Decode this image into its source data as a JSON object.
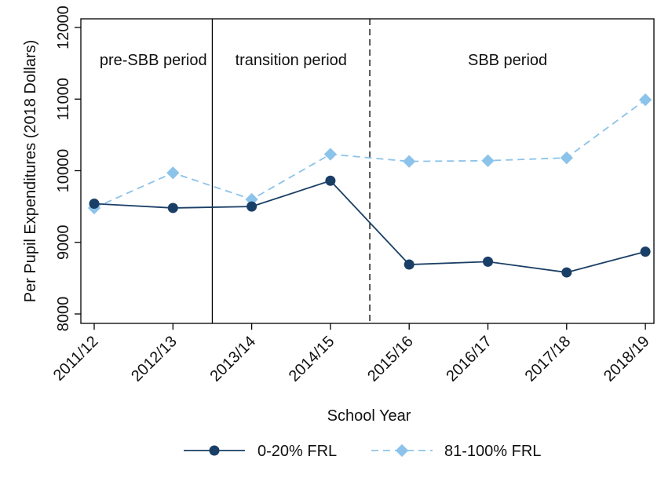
{
  "chart_data": {
    "type": "line",
    "title": "",
    "xlabel": "School Year",
    "ylabel": "Per Pupil Expenditures (2018 Dollars)",
    "categories": [
      "2011/12",
      "2012/13",
      "2013/14",
      "2014/15",
      "2015/16",
      "2016/17",
      "2017/18",
      "2018/19"
    ],
    "ylim": [
      8000,
      12000
    ],
    "yticks": [
      8000,
      9000,
      10000,
      11000,
      12000
    ],
    "series": [
      {
        "name": "0-20% FRL",
        "values": [
          9540,
          9480,
          9500,
          9860,
          8690,
          8730,
          8580,
          8870
        ],
        "color": "#1a3f66",
        "line_style": "solid",
        "marker": "circle"
      },
      {
        "name": "81-100% FRL",
        "values": [
          9480,
          9970,
          9600,
          10230,
          10130,
          10140,
          10180,
          10990
        ],
        "color": "#8cc3ea",
        "line_style": "dashed",
        "marker": "diamond"
      }
    ],
    "periods": [
      {
        "label": "pre-SBB period",
        "start_index": 0,
        "end_index": 1.5
      },
      {
        "label": "transition period",
        "start_index": 1.5,
        "end_index": 3.5
      },
      {
        "label": "SBB period",
        "start_index": 3.5,
        "end_index": 7
      }
    ],
    "dividers": [
      {
        "at_index": 1.5,
        "style": "solid"
      },
      {
        "at_index": 3.5,
        "style": "dashed"
      }
    ],
    "legend_position": "bottom"
  }
}
